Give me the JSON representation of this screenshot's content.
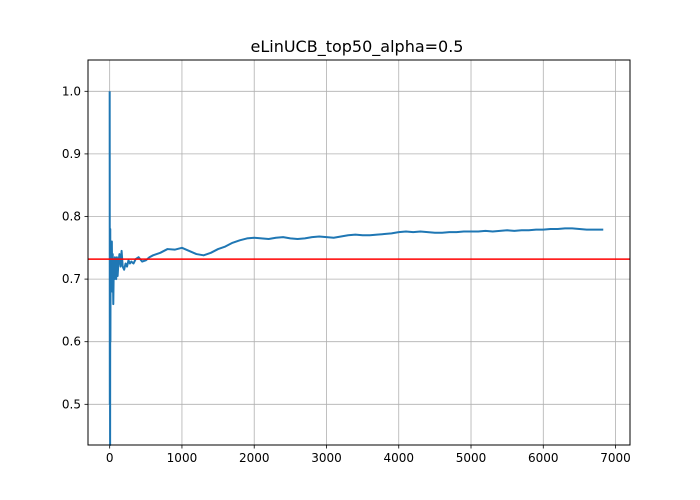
{
  "chart_data": {
    "type": "line",
    "title": "eLinUCB_top50_alpha=0.5",
    "xlabel": "",
    "ylabel": "",
    "xlim": [
      -300,
      7200
    ],
    "ylim": [
      0.435,
      1.05
    ],
    "grid": true,
    "legend": "none",
    "xticks": [
      0,
      1000,
      2000,
      3000,
      4000,
      5000,
      6000,
      7000
    ],
    "xtick_labels": [
      "0",
      "1000",
      "2000",
      "3000",
      "4000",
      "5000",
      "6000",
      "7000"
    ],
    "yticks": [
      0.5,
      0.6,
      0.7,
      0.8,
      0.9,
      1.0
    ],
    "ytick_labels": [
      "0.5",
      "0.6",
      "0.7",
      "0.8",
      "0.9",
      "1.0"
    ],
    "colors": {
      "series": "#1f77b4",
      "reference": "#ff0000",
      "grid": "#b0b0b0"
    },
    "series": [
      {
        "x": [
          0,
          2,
          4,
          6,
          8,
          10,
          13,
          16,
          20,
          25,
          30,
          36,
          42,
          50,
          58,
          65,
          72,
          80,
          90,
          100,
          110,
          120,
          135,
          150,
          165,
          180,
          200,
          220,
          240,
          260,
          280,
          300,
          330,
          360,
          400,
          450,
          500,
          550,
          600,
          650,
          700,
          750,
          800,
          900,
          1000,
          1100,
          1200,
          1300,
          1400,
          1500,
          1600,
          1700,
          1800,
          1900,
          2000,
          2100,
          2200,
          2300,
          2400,
          2500,
          2600,
          2700,
          2800,
          2900,
          3000,
          3100,
          3200,
          3300,
          3400,
          3500,
          3600,
          3700,
          3800,
          3900,
          4000,
          4100,
          4200,
          4300,
          4400,
          4500,
          4600,
          4700,
          4800,
          4900,
          5000,
          5100,
          5200,
          5300,
          5400,
          5500,
          5600,
          5700,
          5800,
          5900,
          6000,
          6100,
          6200,
          6300,
          6400,
          6500,
          6600,
          6700,
          6830
        ],
        "values": [
          1.0,
          0.5,
          0.667,
          0.435,
          0.78,
          0.6,
          0.76,
          0.7,
          0.75,
          0.72,
          0.76,
          0.68,
          0.74,
          0.66,
          0.73,
          0.7,
          0.735,
          0.71,
          0.7,
          0.735,
          0.705,
          0.725,
          0.74,
          0.72,
          0.745,
          0.72,
          0.715,
          0.725,
          0.72,
          0.73,
          0.725,
          0.728,
          0.725,
          0.732,
          0.735,
          0.728,
          0.73,
          0.735,
          0.738,
          0.74,
          0.742,
          0.745,
          0.748,
          0.747,
          0.75,
          0.745,
          0.74,
          0.738,
          0.742,
          0.748,
          0.752,
          0.758,
          0.762,
          0.765,
          0.766,
          0.765,
          0.764,
          0.766,
          0.767,
          0.765,
          0.764,
          0.765,
          0.767,
          0.768,
          0.767,
          0.766,
          0.768,
          0.77,
          0.771,
          0.77,
          0.77,
          0.771,
          0.772,
          0.773,
          0.775,
          0.776,
          0.775,
          0.776,
          0.775,
          0.774,
          0.774,
          0.775,
          0.775,
          0.776,
          0.776,
          0.776,
          0.777,
          0.776,
          0.777,
          0.778,
          0.777,
          0.778,
          0.778,
          0.779,
          0.779,
          0.78,
          0.78,
          0.781,
          0.781,
          0.78,
          0.779,
          0.779,
          0.779
        ]
      }
    ],
    "reference_line": {
      "y": 0.732
    }
  }
}
